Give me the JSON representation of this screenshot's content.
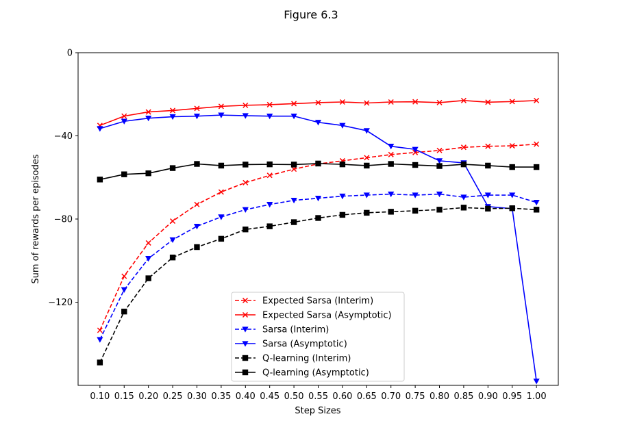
{
  "figure": {
    "title": "Figure 6.3"
  },
  "chart_data": {
    "type": "line",
    "title": "Figure 6.3",
    "xlabel": "Step Sizes",
    "ylabel": "Sum of rewards per episodes",
    "x": [
      0.1,
      0.15,
      0.2,
      0.25,
      0.3,
      0.35,
      0.4,
      0.45,
      0.5,
      0.55,
      0.6,
      0.65,
      0.7,
      0.75,
      0.8,
      0.85,
      0.9,
      0.95,
      1.0
    ],
    "x_tick_labels": [
      "0.10",
      "0.15",
      "0.20",
      "0.25",
      "0.30",
      "0.35",
      "0.40",
      "0.45",
      "0.50",
      "0.55",
      "0.60",
      "0.65",
      "0.70",
      "0.75",
      "0.80",
      "0.85",
      "0.90",
      "0.95",
      "1.00"
    ],
    "y_ticks": [
      0,
      -40,
      -80,
      -120
    ],
    "y_tick_labels": [
      "0",
      "−40",
      "−80",
      "−120"
    ],
    "xlim": [
      0.055,
      1.045
    ],
    "ylim": [
      -160,
      0
    ],
    "grid": false,
    "legend_position": "bottom-center",
    "series": [
      {
        "name": "Expected Sarsa (Interim)",
        "color": "#ff0000",
        "linestyle": "dashed",
        "marker": "x",
        "values": [
          -133.5,
          -107.5,
          -91.5,
          -81,
          -73,
          -67,
          -62.5,
          -59,
          -56,
          -53.5,
          -52,
          -50.5,
          -49,
          -48,
          -47,
          -45.5,
          -45,
          -44.8,
          -44
        ]
      },
      {
        "name": "Expected Sarsa (Asymptotic)",
        "color": "#ff0000",
        "linestyle": "solid",
        "marker": "x",
        "values": [
          -35,
          -30.5,
          -28.5,
          -27.8,
          -26.8,
          -25.8,
          -25.3,
          -25,
          -24.5,
          -24,
          -23.7,
          -24.2,
          -23.7,
          -23.6,
          -24,
          -23,
          -23.8,
          -23.5,
          -23
        ]
      },
      {
        "name": "Sarsa (Interim)",
        "color": "#0000ff",
        "linestyle": "dashed",
        "marker": "triangle-down",
        "values": [
          -138,
          -114,
          -99,
          -90,
          -83.5,
          -79,
          -75.5,
          -73,
          -71,
          -70,
          -69,
          -68.5,
          -68,
          -68.5,
          -68,
          -69.5,
          -68.5,
          -68.5,
          -72
        ]
      },
      {
        "name": "Sarsa (Asymptotic)",
        "color": "#0000ff",
        "linestyle": "solid",
        "marker": "triangle-down",
        "values": [
          -36.5,
          -33,
          -31.5,
          -30.8,
          -30.5,
          -30,
          -30.3,
          -30.5,
          -30.5,
          -33.5,
          -35,
          -37.5,
          -45,
          -46.5,
          -52,
          -53,
          -74,
          -75,
          -158
        ]
      },
      {
        "name": "Q-learning (Interim)",
        "color": "#000000",
        "linestyle": "dashed",
        "marker": "square",
        "values": [
          -149,
          -124.5,
          -108.5,
          -98.5,
          -93.5,
          -89.5,
          -85,
          -83.5,
          -81.5,
          -79.5,
          -78,
          -77,
          -76.5,
          -76,
          -75.5,
          -74.5,
          -75,
          -74.8,
          -75.5
        ]
      },
      {
        "name": "Q-learning (Asymptotic)",
        "color": "#000000",
        "linestyle": "solid",
        "marker": "square",
        "values": [
          -61,
          -58.5,
          -58,
          -55.5,
          -53.5,
          -54.3,
          -53.8,
          -53.7,
          -53.8,
          -53.3,
          -53.7,
          -54.3,
          -53.5,
          -54,
          -54.5,
          -53.7,
          -54.3,
          -55,
          -55
        ]
      }
    ]
  }
}
